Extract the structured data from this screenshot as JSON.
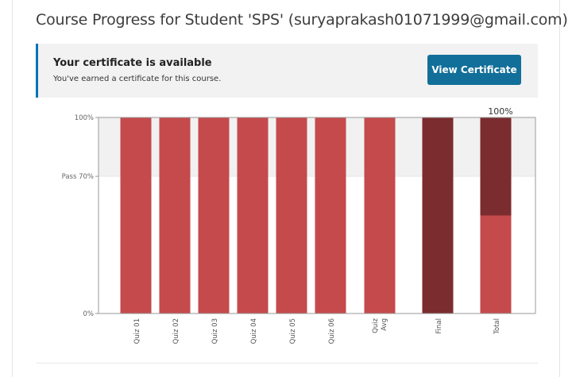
{
  "header": {
    "title": "Course Progress for Student 'SPS' (suryaprakash01071999@gmail.com)"
  },
  "certificate": {
    "title": "Your certificate is available",
    "message": "You've earned a certificate for this course.",
    "button_label": "View Certificate"
  },
  "colors": {
    "quiz_bar": "#c54a4c",
    "final_bar": "#7b2c2e",
    "accent_blue": "#126f9a"
  },
  "chart_data": {
    "type": "bar",
    "categories": [
      "Quiz 01",
      "Quiz 02",
      "Quiz 03",
      "Quiz 04",
      "Quiz 05",
      "Quiz 06",
      "Quiz Avg",
      "Final",
      "Total"
    ],
    "values": [
      100,
      100,
      100,
      100,
      100,
      100,
      100,
      100,
      100
    ],
    "total_breakdown": [
      {
        "part": "quizzes",
        "value": 50
      },
      {
        "part": "final",
        "value": 50
      }
    ],
    "ylim": [
      0,
      100
    ],
    "y_ticks": [
      {
        "value": 100,
        "label": "100%"
      },
      {
        "value": 70,
        "label": "Pass 70%"
      },
      {
        "value": 0,
        "label": "0%"
      }
    ],
    "pass_threshold": 70,
    "total_label": "100%"
  }
}
